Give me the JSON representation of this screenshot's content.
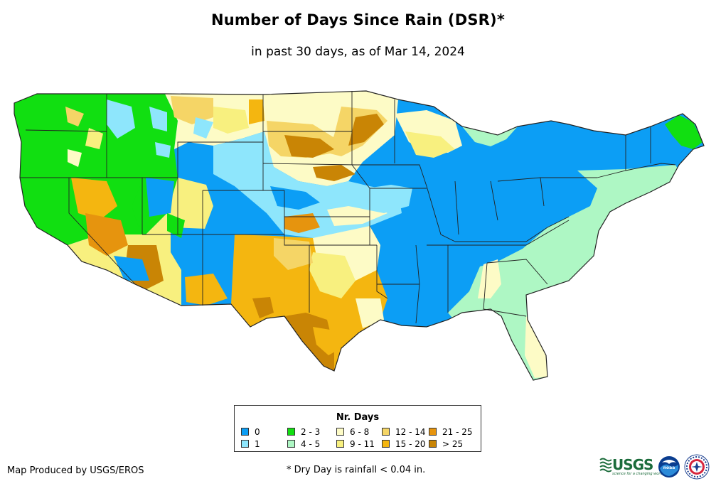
{
  "title": "Number of Days Since Rain (DSR)*",
  "subtitle": "in past 30 days, as of Mar 14, 2024",
  "legend": {
    "title": "Nr. Days",
    "items": [
      {
        "label": "0",
        "color": "#0c9ef5"
      },
      {
        "label": "1",
        "color": "#8ee6fc"
      },
      {
        "label": "2 - 3",
        "color": "#11df11"
      },
      {
        "label": "4 - 5",
        "color": "#aef7c4"
      },
      {
        "label": "6 - 8",
        "color": "#fdfbc6"
      },
      {
        "label": "9 - 11",
        "color": "#f8f07f"
      },
      {
        "label": "12 - 14",
        "color": "#f5d566"
      },
      {
        "label": "15 - 20",
        "color": "#f4b610"
      },
      {
        "label": "21 - 25",
        "color": "#e6940e"
      },
      {
        "label": "> 25",
        "color": "#c98505"
      }
    ]
  },
  "footer": {
    "credit": "Map Produced by USGS/EROS",
    "note": "* Dry Day is rainfall < 0.04 in."
  },
  "logos": {
    "usgs": "USGS",
    "usgs_tagline": "science for a changing world",
    "noaa": "noaa"
  }
}
